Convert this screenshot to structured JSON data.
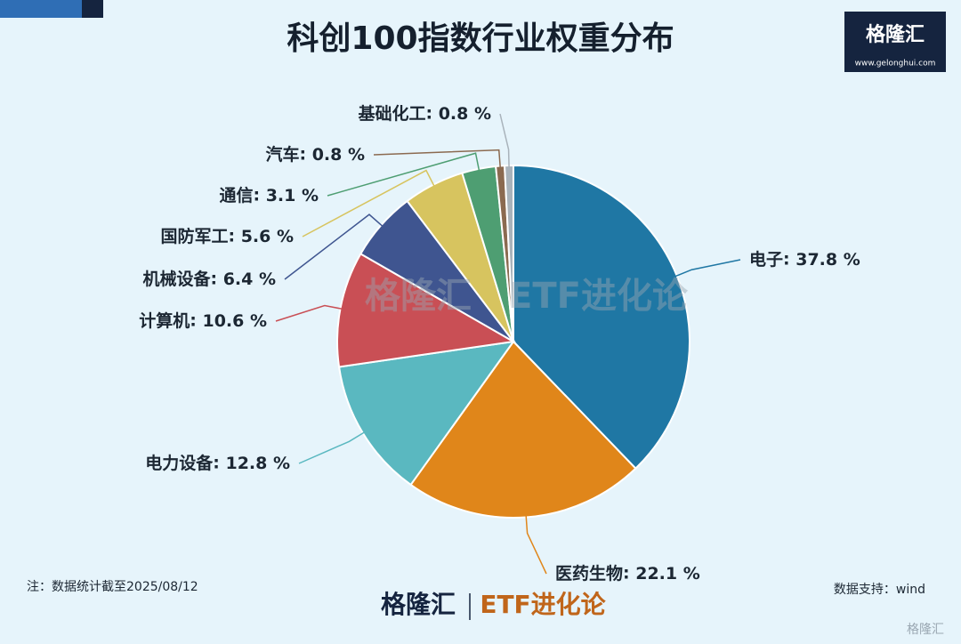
{
  "chart_data": {
    "type": "pie",
    "title": "科创100指数行业权重分布",
    "categories": [
      "电子",
      "医药生物",
      "电力设备",
      "计算机",
      "机械设备",
      "国防军工",
      "通信",
      "汽车",
      "基础化工"
    ],
    "values": [
      37.8,
      22.1,
      12.8,
      10.6,
      6.4,
      5.6,
      3.1,
      0.8,
      0.8
    ],
    "value_labels": [
      "37.8 %",
      "22.1 %",
      "12.8 %",
      "10.6 %",
      "6.4 %",
      "5.6 %",
      "3.1 %",
      "0.8 %",
      "0.8 %"
    ],
    "colors": [
      "#1f77a4",
      "#e0861a",
      "#5ab8c0",
      "#c94f55",
      "#3f5590",
      "#d7c45f",
      "#4e9e72",
      "#8b6a50",
      "#a9b3bb"
    ],
    "note": "注：数据统计截至2025/08/12",
    "source": "数据支持：wind"
  },
  "branding": {
    "logo": "格隆汇",
    "url": "www.gelonghui.com",
    "column": "ETF进化论"
  }
}
